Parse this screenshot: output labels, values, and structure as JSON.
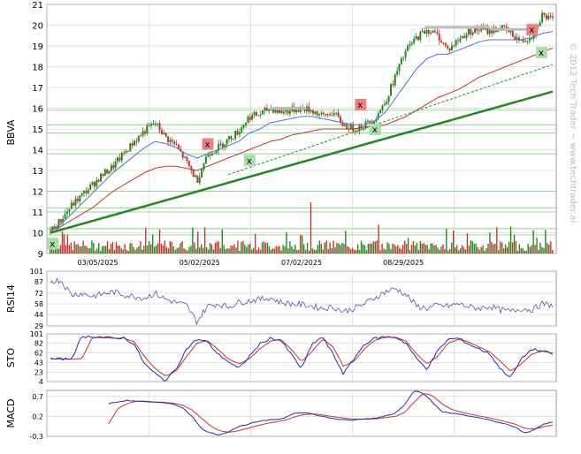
{
  "chart_data": {
    "type": "candlestick",
    "ticker": "BBVA",
    "copyright": "© 2012 Tech Trader ~ www.techtrader.ai",
    "x_tick_labels": [
      "03/05/2025",
      "05/02/2025",
      "07/02/2025",
      "08/29/2025"
    ],
    "price": {
      "ylim": [
        9,
        21
      ],
      "y_ticks": [
        9,
        10,
        11,
        12,
        13,
        14,
        15,
        16,
        17,
        18,
        19,
        20,
        21
      ],
      "volume_ticks": [
        7,
        8
      ],
      "close_anchors": [
        10.1,
        10.6,
        11.3,
        11.8,
        12.3,
        12.8,
        13.2,
        13.8,
        14.4,
        14.9,
        15.3,
        14.6,
        14.2,
        13.4,
        12.5,
        13.8,
        14.1,
        14.5,
        14.9,
        15.6,
        15.7,
        16.0,
        15.8,
        15.9,
        16.0,
        15.9,
        15.6,
        15.8,
        15.2,
        15.0,
        15.2,
        15.5,
        16.3,
        17.6,
        18.8,
        19.4,
        19.8,
        19.5,
        18.8,
        19.3,
        19.7,
        19.8,
        19.7,
        19.9,
        19.6,
        19.2,
        19.5,
        20.5,
        20.2
      ],
      "moving_averages": [
        {
          "name": "short",
          "color": "#4a78c8",
          "anchors": [
            10.1,
            10.4,
            10.9,
            11.4,
            11.9,
            12.4,
            12.9,
            13.3,
            13.7,
            14.1,
            14.4,
            14.3,
            14.1,
            13.8,
            13.6,
            13.8,
            14.0,
            14.2,
            14.4,
            14.8,
            15.0,
            15.3,
            15.4,
            15.5,
            15.6,
            15.6,
            15.5,
            15.4,
            15.3,
            15.2,
            15.2,
            15.4,
            15.8,
            16.5,
            17.2,
            17.9,
            18.4,
            18.6,
            18.6,
            18.8,
            19.0,
            19.2,
            19.3,
            19.3,
            19.3,
            19.3,
            19.4,
            19.6,
            19.7
          ]
        },
        {
          "name": "long",
          "color": "#c0392b",
          "anchors": [
            10.1,
            10.3,
            10.6,
            10.9,
            11.2,
            11.6,
            12.0,
            12.3,
            12.6,
            12.9,
            13.1,
            13.2,
            13.2,
            13.1,
            13.0,
            13.2,
            13.4,
            13.6,
            13.8,
            14.0,
            14.2,
            14.4,
            14.5,
            14.7,
            14.8,
            14.9,
            15.0,
            15.0,
            15.0,
            15.0,
            15.1,
            15.1,
            15.2,
            15.4,
            15.6,
            15.9,
            16.2,
            16.5,
            16.7,
            16.9,
            17.2,
            17.5,
            17.7,
            17.9,
            18.1,
            18.3,
            18.5,
            18.7,
            18.9
          ]
        }
      ],
      "trendlines": [
        {
          "style": "solid",
          "color": "#1f8a1f",
          "from": [
            0,
            10.0
          ],
          "to": [
            48,
            16.8
          ]
        },
        {
          "style": "dashed",
          "color": "#1f8a1f",
          "from": [
            17,
            12.8
          ],
          "to": [
            48,
            18.1
          ]
        }
      ],
      "horizontal_levels": [
        9.9,
        10.2,
        11.0,
        11.2,
        12.0,
        13.8,
        14.8,
        15.2,
        15.9
      ],
      "resistance_bars": [
        {
          "from": 21.0,
          "to": 24.5,
          "value": 16.0
        },
        {
          "from": 35.8,
          "to": 42.0,
          "value": 19.9
        },
        {
          "from": 42.0,
          "to": 46.0,
          "value": 19.8
        }
      ],
      "signals": [
        {
          "label": "x",
          "kind": "buy",
          "i": 0.2,
          "y": 9.5
        },
        {
          "label": "x",
          "kind": "sell",
          "i": 15.0,
          "y": 14.3
        },
        {
          "label": "x",
          "kind": "buy",
          "i": 19.0,
          "y": 13.5
        },
        {
          "label": "x",
          "kind": "sell",
          "i": 29.6,
          "y": 16.2
        },
        {
          "label": "x",
          "kind": "buy",
          "i": 31.0,
          "y": 15.0
        },
        {
          "label": "x",
          "kind": "sell",
          "i": 46.0,
          "y": 19.8
        },
        {
          "label": "x",
          "kind": "buy",
          "i": 46.9,
          "y": 18.7
        }
      ]
    },
    "rsi": {
      "label": "RSI14",
      "y_ticks": [
        101,
        87,
        72,
        58,
        44,
        29
      ],
      "ylim": [
        29,
        101
      ],
      "anchors": [
        88,
        89,
        70,
        72,
        68,
        71,
        74,
        70,
        68,
        66,
        72,
        64,
        60,
        56,
        34,
        55,
        58,
        54,
        60,
        62,
        64,
        66,
        60,
        58,
        57,
        55,
        52,
        54,
        48,
        52,
        58,
        66,
        74,
        78,
        70,
        55,
        52,
        56,
        55,
        58,
        54,
        52,
        55,
        50,
        48,
        52,
        50,
        58,
        56
      ]
    },
    "sto": {
      "label": "STO",
      "y_ticks": [
        101,
        82,
        62,
        43,
        23,
        4
      ],
      "ylim": [
        4,
        101
      ],
      "k_anchors": [
        50,
        50,
        50,
        95,
        96,
        94,
        92,
        93,
        80,
        40,
        20,
        6,
        30,
        70,
        90,
        85,
        60,
        45,
        30,
        55,
        80,
        92,
        88,
        60,
        30,
        80,
        95,
        60,
        20,
        50,
        80,
        92,
        95,
        94,
        82,
        50,
        30,
        66,
        90,
        92,
        80,
        70,
        60,
        30,
        12,
        50,
        70,
        66,
        60
      ],
      "d_anchors": [
        50,
        50,
        50,
        50,
        94,
        93,
        92,
        93,
        85,
        55,
        30,
        15,
        25,
        55,
        82,
        87,
        70,
        50,
        40,
        50,
        70,
        86,
        90,
        70,
        45,
        65,
        90,
        75,
        35,
        45,
        70,
        88,
        94,
        94,
        86,
        60,
        40,
        55,
        82,
        90,
        84,
        74,
        64,
        45,
        25,
        40,
        60,
        66,
        62
      ]
    },
    "macd": {
      "label": "MACD",
      "y_ticks": [
        0.7,
        0.2,
        -0.3
      ],
      "ylim": [
        -0.3,
        0.85
      ],
      "line_anchors": [
        0.52,
        0.56,
        0.6,
        0.58,
        0.56,
        0.55,
        0.55,
        0.5,
        0.42,
        0.2,
        -0.1,
        -0.22,
        -0.26,
        -0.18,
        -0.06,
        0.0,
        0.06,
        0.1,
        0.12,
        0.16,
        0.28,
        0.3,
        0.26,
        0.2,
        0.16,
        0.12,
        0.1,
        0.12,
        0.14,
        0.16,
        0.22,
        0.28,
        0.5,
        0.85,
        0.78,
        0.55,
        0.32,
        0.28,
        0.26,
        0.2,
        0.16,
        0.12,
        0.06,
        0.0,
        -0.08,
        -0.22,
        -0.14,
        0.0,
        0.06
      ],
      "signal_anchors": [
        0.02,
        0.4,
        0.52,
        0.58,
        0.58,
        0.56,
        0.55,
        0.53,
        0.48,
        0.36,
        0.16,
        -0.04,
        -0.16,
        -0.2,
        -0.16,
        -0.1,
        -0.04,
        0.02,
        0.06,
        0.1,
        0.18,
        0.24,
        0.26,
        0.24,
        0.2,
        0.17,
        0.14,
        0.13,
        0.13,
        0.14,
        0.17,
        0.2,
        0.3,
        0.55,
        0.78,
        0.72,
        0.52,
        0.38,
        0.31,
        0.26,
        0.21,
        0.17,
        0.12,
        0.06,
        0.0,
        -0.1,
        -0.12,
        -0.06,
        -0.02
      ],
      "line_color": "#2b2bb5",
      "signal_color": "#c0392b"
    },
    "colors": {
      "up": "#1f8a1f",
      "down": "#c0392b",
      "grid": "#c8c8c8",
      "buy_bg": "#a8e0a8",
      "sell_bg": "#f08080",
      "rsi_line": "#5555aa"
    }
  }
}
